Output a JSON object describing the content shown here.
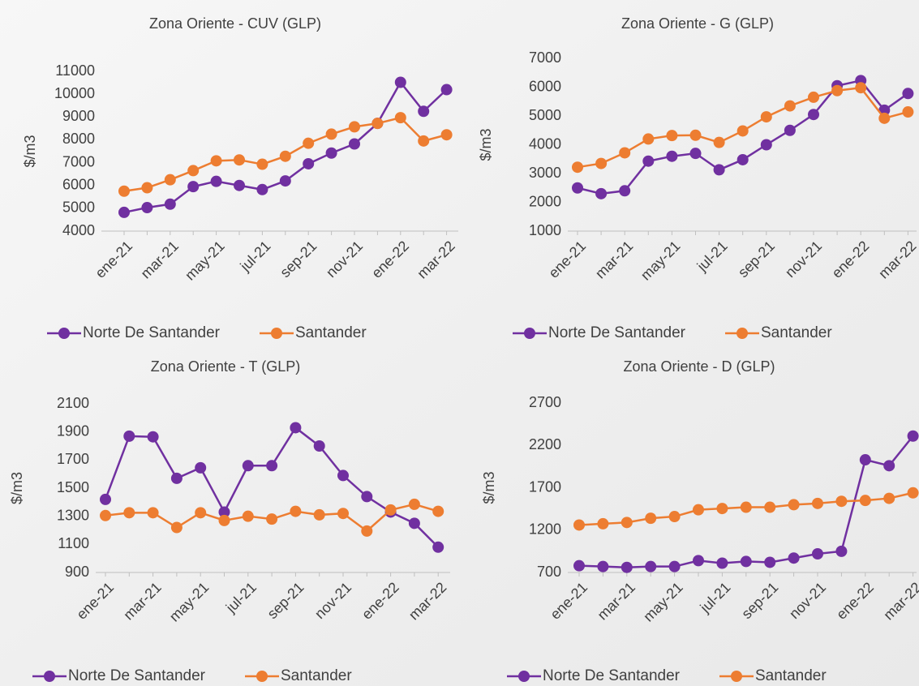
{
  "chart_data": [
    {
      "type": "line",
      "title": "Zona Oriente - CUV (GLP)",
      "y_label": "$/m3",
      "categories": [
        "ene-21",
        null,
        "mar-21",
        null,
        "may-21",
        null,
        "jul-21",
        null,
        "sep-21",
        null,
        "nov-21",
        null,
        "ene-22",
        null,
        "mar-22"
      ],
      "series": [
        {
          "name": "Norte De Santander",
          "color": "#7030a0",
          "values": [
            4820,
            5030,
            5180,
            5950,
            6180,
            6000,
            5820,
            6200,
            6950,
            7420,
            7820,
            8720,
            10520,
            9250,
            10200
          ]
        },
        {
          "name": "Santander",
          "color": "#ed7d31",
          "values": [
            5750,
            5900,
            6250,
            6650,
            7080,
            7120,
            6930,
            7280,
            7850,
            8250,
            8570,
            8720,
            8970,
            7950,
            8220
          ]
        }
      ],
      "ylim": [
        4000,
        11000
      ],
      "yticks": [
        4000,
        5000,
        6000,
        7000,
        8000,
        9000,
        10000,
        11000
      ],
      "legend": "bottom"
    },
    {
      "type": "line",
      "title": "Zona Oriente - G (GLP)",
      "y_label": "$/m3",
      "categories": [
        "ene-21",
        null,
        "mar-21",
        null,
        "may-21",
        null,
        "jul-21",
        null,
        "sep-21",
        null,
        "nov-21",
        null,
        "ene-22",
        null,
        "mar-22"
      ],
      "series": [
        {
          "name": "Norte De Santander",
          "color": "#7030a0",
          "values": [
            2500,
            2300,
            2400,
            3430,
            3600,
            3700,
            3130,
            3480,
            4000,
            4500,
            5050,
            6050,
            6230,
            5200,
            5780
          ]
        },
        {
          "name": "Santander",
          "color": "#ed7d31",
          "values": [
            3220,
            3350,
            3720,
            4200,
            4320,
            4330,
            4080,
            4480,
            4970,
            5350,
            5650,
            5880,
            5980,
            4920,
            5140
          ]
        }
      ],
      "ylim": [
        1000,
        7000
      ],
      "yticks": [
        1000,
        2000,
        3000,
        4000,
        5000,
        6000,
        7000
      ],
      "legend": "bottom"
    },
    {
      "type": "line",
      "title": "Zona Oriente - T (GLP)",
      "y_label": "$/m3",
      "categories": [
        "ene-21",
        null,
        "mar-21",
        null,
        "may-21",
        null,
        "jul-21",
        null,
        "sep-21",
        null,
        "nov-21",
        null,
        "ene-22",
        null,
        "mar-22"
      ],
      "series": [
        {
          "name": "Norte De Santander",
          "color": "#7030a0",
          "values": [
            1420,
            1870,
            1865,
            1570,
            1645,
            1330,
            1660,
            1660,
            1930,
            1800,
            1590,
            1440,
            1330,
            1250,
            1080
          ]
        },
        {
          "name": "Santander",
          "color": "#ed7d31",
          "values": [
            1305,
            1325,
            1325,
            1220,
            1325,
            1270,
            1300,
            1280,
            1335,
            1310,
            1320,
            1195,
            1345,
            1385,
            1335
          ]
        }
      ],
      "ylim": [
        900,
        2100
      ],
      "yticks": [
        900,
        1100,
        1300,
        1500,
        1700,
        1900,
        2100
      ],
      "legend": "bottom"
    },
    {
      "type": "line",
      "title": "Zona Oriente - D (GLP)",
      "y_label": "$/m3",
      "categories": [
        "ene-21",
        null,
        "mar-21",
        null,
        "may-21",
        null,
        "jul-21",
        null,
        "sep-21",
        null,
        "nov-21",
        null,
        "ene-22",
        null,
        "mar-22"
      ],
      "series": [
        {
          "name": "Norte De Santander",
          "color": "#7030a0",
          "values": [
            780,
            770,
            760,
            770,
            770,
            840,
            810,
            830,
            820,
            870,
            920,
            950,
            2030,
            1960,
            2310
          ]
        },
        {
          "name": "Santander",
          "color": "#ed7d31",
          "values": [
            1260,
            1275,
            1290,
            1340,
            1360,
            1440,
            1455,
            1470,
            1470,
            1500,
            1515,
            1540,
            1550,
            1575,
            1640
          ]
        }
      ],
      "ylim": [
        700,
        2700
      ],
      "yticks": [
        700,
        1200,
        1700,
        2200,
        2700
      ],
      "legend": "bottom"
    }
  ]
}
